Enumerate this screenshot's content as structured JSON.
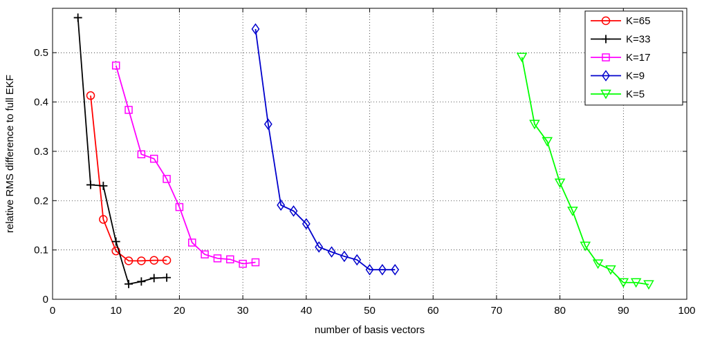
{
  "chart_data": {
    "type": "line",
    "xlabel": "number of basis vectors",
    "ylabel": "relative RMS difference to full EKF",
    "xlim": [
      0,
      100
    ],
    "ylim": [
      0,
      0.59
    ],
    "xticks": [
      0,
      10,
      20,
      30,
      40,
      50,
      60,
      70,
      80,
      90,
      100
    ],
    "yticks": [
      0,
      0.1,
      0.2,
      0.3,
      0.4,
      0.5
    ],
    "ytick_labels": [
      "0",
      "0.1",
      "0.2",
      "0.3",
      "0.4",
      "0.5"
    ],
    "grid": true,
    "legend_position": "top-right",
    "series": [
      {
        "name": "K=65",
        "color": "#ff0000",
        "marker": "circle",
        "x": [
          6,
          8,
          10,
          12,
          14,
          16,
          18
        ],
        "y": [
          0.413,
          0.162,
          0.098,
          0.078,
          0.078,
          0.079,
          0.079
        ]
      },
      {
        "name": "K=33",
        "color": "#000000",
        "marker": "plus",
        "x": [
          4,
          6,
          8,
          10,
          12,
          14,
          16,
          18
        ],
        "y": [
          0.571,
          0.232,
          0.23,
          0.117,
          0.031,
          0.036,
          0.043,
          0.044
        ]
      },
      {
        "name": "K=17",
        "color": "#ff00ff",
        "marker": "square",
        "x": [
          10,
          12,
          14,
          16,
          18,
          20,
          22,
          24,
          26,
          28,
          30,
          32
        ],
        "y": [
          0.474,
          0.384,
          0.294,
          0.285,
          0.244,
          0.187,
          0.115,
          0.091,
          0.083,
          0.081,
          0.072,
          0.075
        ]
      },
      {
        "name": "K=9",
        "color": "#0000cc",
        "marker": "diamond",
        "x": [
          32,
          34,
          36,
          38,
          40,
          42,
          44,
          46,
          48,
          50,
          52,
          54
        ],
        "y": [
          0.548,
          0.355,
          0.191,
          0.179,
          0.153,
          0.106,
          0.096,
          0.087,
          0.08,
          0.06,
          0.06,
          0.06
        ]
      },
      {
        "name": "K=5",
        "color": "#00ff00",
        "marker": "triangle-down",
        "x": [
          74,
          76,
          78,
          80,
          82,
          84,
          86,
          88,
          90,
          92,
          94
        ],
        "y": [
          0.491,
          0.355,
          0.32,
          0.236,
          0.179,
          0.108,
          0.072,
          0.06,
          0.034,
          0.034,
          0.03
        ]
      }
    ]
  }
}
